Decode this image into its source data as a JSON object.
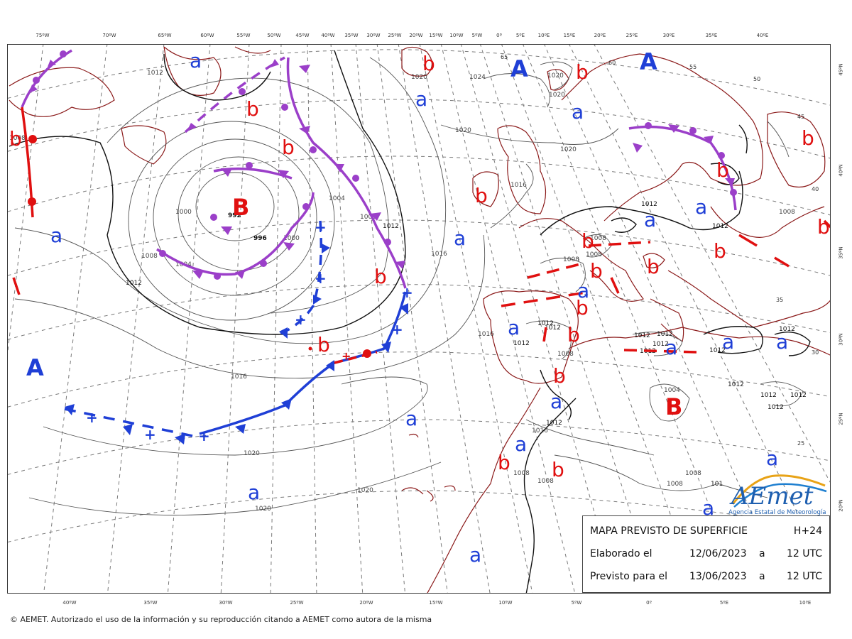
{
  "chart_data": {
    "type": "map",
    "lon_labels_top": [
      "75ºW",
      "70ºW",
      "65ºW",
      "60ºW",
      "55ºW",
      "50ºW",
      "45ºW",
      "40ºW",
      "35ºW",
      "30ºW",
      "25ºW",
      "20ºW",
      "15ºW",
      "10ºW",
      "5ºW",
      "0º",
      "5ºE",
      "10ºE",
      "15ºE",
      "20ºE",
      "25ºE",
      "30ºE",
      "35ºE",
      "40ºE"
    ],
    "lon_labels_bottom": [
      "40ºW",
      "35ºW",
      "30ºW",
      "25ºW",
      "20ºW",
      "15ºW",
      "10ºW",
      "5ºW",
      "0º",
      "5ºE",
      "10ºE"
    ],
    "lat_labels_right": [
      "45ºN",
      "40ºN",
      "35ºN",
      "30ºN",
      "25ºN",
      "20ºN"
    ],
    "pressure_centers": [
      {
        "label": "A",
        "kind": "high"
      },
      {
        "label": "A",
        "kind": "high"
      },
      {
        "label": "A",
        "kind": "high"
      },
      {
        "label": "B",
        "kind": "low"
      },
      {
        "label": "B",
        "kind": "low"
      },
      {
        "label": "a",
        "kind": "relative_high"
      },
      {
        "label": "b",
        "kind": "relative_low"
      }
    ],
    "isobar_labels": [
      "992",
      "996",
      "1000",
      "1004",
      "1008",
      "1012",
      "1016",
      "1020",
      "1024"
    ],
    "grid_value_labels": [
      "65",
      "60",
      "55",
      "50",
      "45",
      "40",
      "35",
      "30",
      "25"
    ],
    "partial_label": "101"
  },
  "legend": {
    "title": "MAPA PREVISTO DE SUPERFICIE",
    "horizon": "H+24",
    "made_label": "Elaborado el",
    "made_date": "12/06/2023",
    "made_at": "a",
    "made_time": "12 UTC",
    "valid_label": "Previsto para el",
    "valid_date": "13/06/2023",
    "valid_at": "a",
    "valid_time": "12 UTC"
  },
  "logo": {
    "text": "AEmet",
    "subtitle": "Agencia Estatal de Meteorología"
  },
  "copyright": "© AEMET. Autorizado el uso de la información y su reproducción citando a AEMET como autora de la misma",
  "colors": {
    "high": "#1f3fd6",
    "low": "#e01010",
    "warm_front": "#e01010",
    "cold_front": "#1f3fd6",
    "occluded_front": "#9b3fc9",
    "coast": "#8b1a1a",
    "isobar": "#555555",
    "grid": "#777777"
  }
}
